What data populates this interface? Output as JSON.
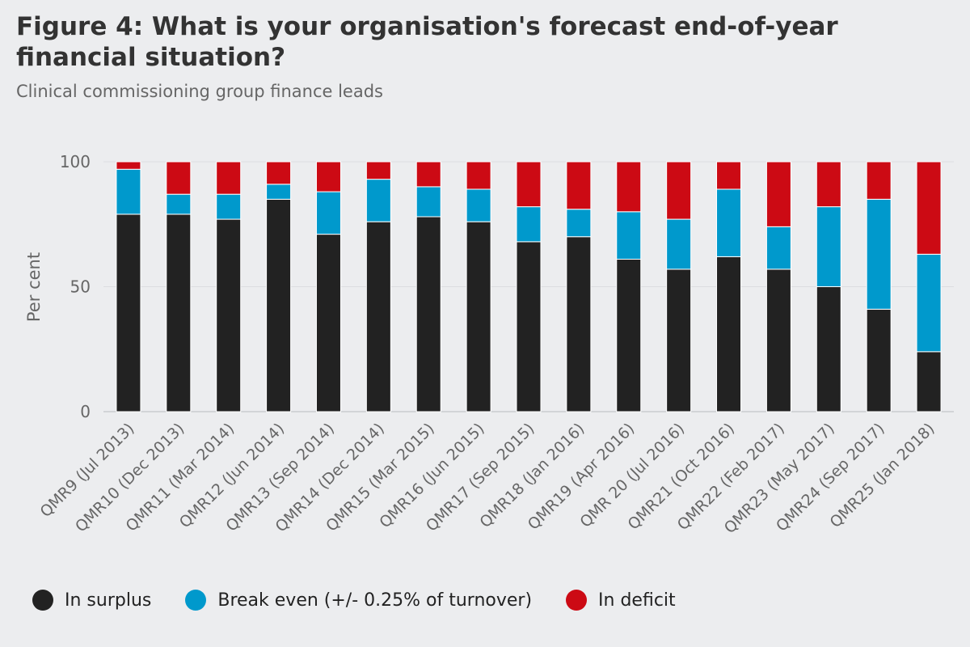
{
  "title": "Figure 4: What is your organisation's forecast end-of-year financial situation?",
  "subtitle": "Clinical commissioning group finance leads",
  "colors": {
    "surplus": "#222222",
    "break_even": "#0099cc",
    "deficit": "#cc0a14",
    "grid": "#dcdde0",
    "axis_text": "#666666"
  },
  "legend": [
    {
      "label": "In surplus",
      "color": "#222222"
    },
    {
      "label": "Break even (+/- 0.25% of turnover)",
      "color": "#0099cc"
    },
    {
      "label": "In deficit",
      "color": "#cc0a14"
    }
  ],
  "chart_data": {
    "type": "bar",
    "stacked": true,
    "title": "Figure 4: What is your organisation's forecast end-of-year financial situation?",
    "subtitle": "Clinical commissioning group finance leads",
    "xlabel": "",
    "ylabel": "Per cent",
    "ylim": [
      0,
      100
    ],
    "yticks": [
      0,
      50,
      100
    ],
    "categories": [
      "QMR9 (Jul 2013)",
      "QMR10 (Dec 2013)",
      "QMR11 (Mar 2014)",
      "QMR12 (Jun 2014)",
      "QMR13 (Sep 2014)",
      "QMR14 (Dec 2014)",
      "QMR15 (Mar 2015)",
      "QMR16 (Jun 2015)",
      "QMR17 (Sep 2015)",
      "QMR18 (Jan 2016)",
      "QMR19 (Apr 2016)",
      "QMR 20 (Jul 2016)",
      "QMR21 (Oct 2016)",
      "QMR22 (Feb 2017)",
      "QMR23 (May 2017)",
      "QMR24 (Sep 2017)",
      "QMR25 (Jan 2018)"
    ],
    "series": [
      {
        "name": "In surplus",
        "values": [
          79,
          79,
          77,
          85,
          71,
          76,
          78,
          76,
          68,
          70,
          61,
          57,
          62,
          57,
          50,
          41,
          24
        ]
      },
      {
        "name": "Break even (+/- 0.25% of turnover)",
        "values": [
          18,
          8,
          10,
          6,
          17,
          17,
          12,
          13,
          14,
          11,
          19,
          20,
          27,
          17,
          32,
          44,
          39
        ]
      },
      {
        "name": "In deficit",
        "values": [
          3,
          13,
          13,
          9,
          12,
          7,
          10,
          11,
          18,
          19,
          20,
          23,
          11,
          26,
          18,
          15,
          37
        ]
      }
    ]
  }
}
